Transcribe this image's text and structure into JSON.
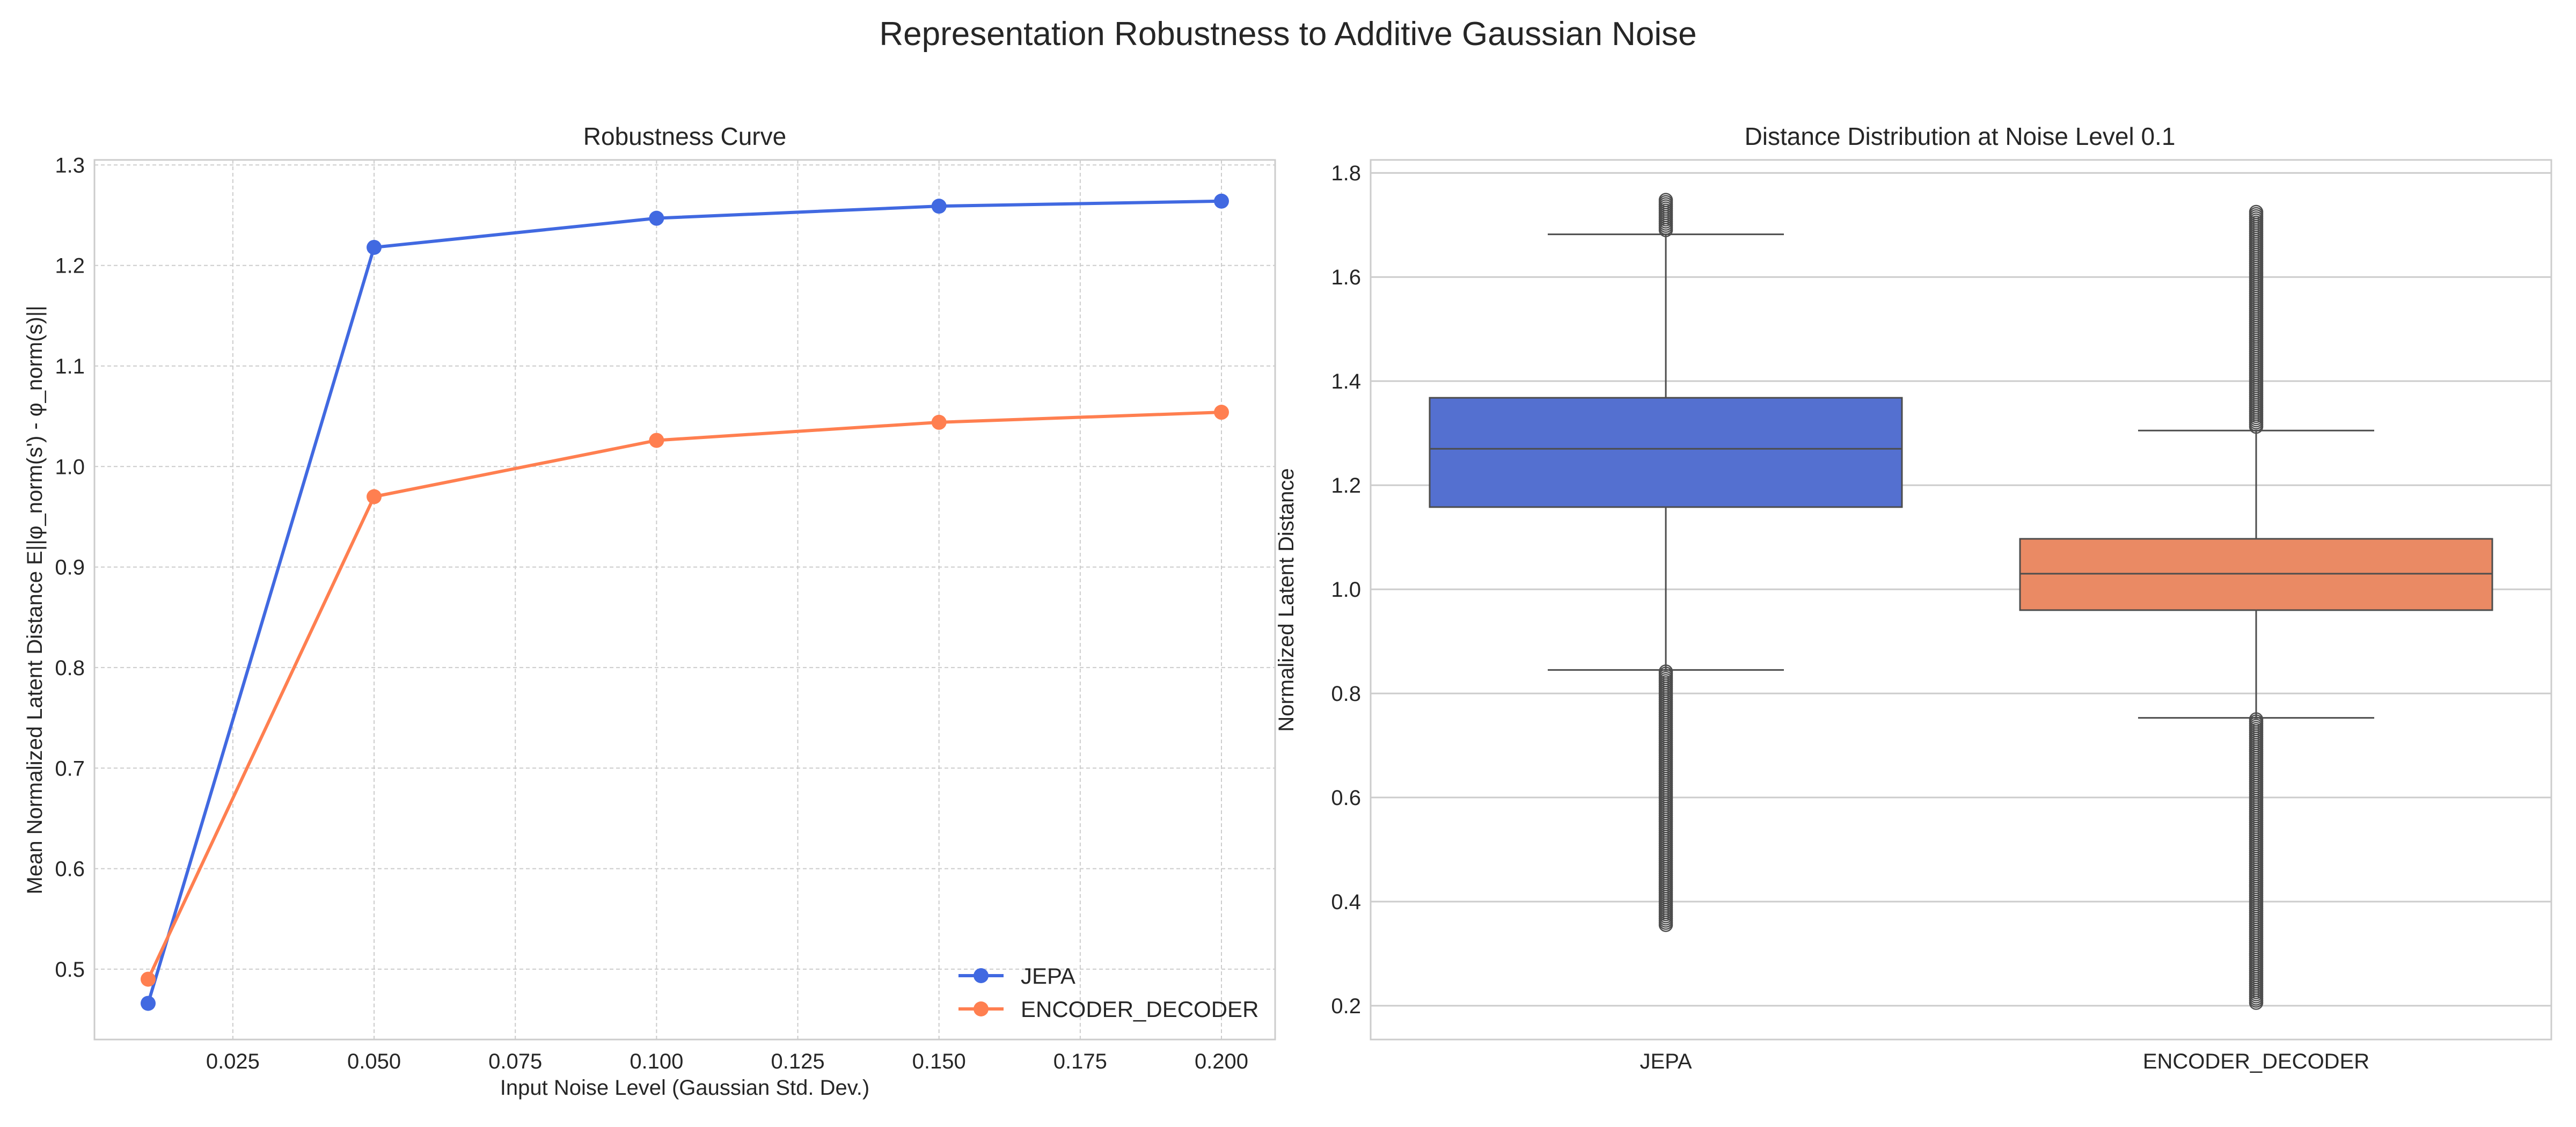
{
  "figure": {
    "title": "Representation Robustness to Additive Gaussian Noise"
  },
  "chart_data": [
    {
      "type": "line",
      "title": "Robustness Curve",
      "xlabel": "Input Noise Level (Gaussian Std. Dev.)",
      "ylabel": "Mean Normalized Latent Distance E||φ_norm(s') - φ_norm(s)||",
      "x": [
        0.01,
        0.05,
        0.1,
        0.15,
        0.2
      ],
      "series": [
        {
          "name": "JEPA",
          "color": "#4169e1",
          "values": [
            0.466,
            1.218,
            1.247,
            1.259,
            1.264
          ]
        },
        {
          "name": "ENCODER_DECODER",
          "color": "#ff7f50",
          "values": [
            0.49,
            0.97,
            1.026,
            1.044,
            1.054
          ]
        }
      ],
      "xlim": [
        0.0005,
        0.2095
      ],
      "ylim": [
        0.43,
        1.305
      ],
      "xticks": [
        0.025,
        0.05,
        0.075,
        0.1,
        0.125,
        0.15,
        0.175,
        0.2
      ],
      "xtick_labels": [
        "0.025",
        "0.050",
        "0.075",
        "0.100",
        "0.125",
        "0.150",
        "0.175",
        "0.200"
      ],
      "yticks": [
        0.5,
        0.6,
        0.7,
        0.8,
        0.9,
        1.0,
        1.1,
        1.2,
        1.3
      ],
      "ytick_labels": [
        "0.5",
        "0.6",
        "0.7",
        "0.8",
        "0.9",
        "1.0",
        "1.1",
        "1.2",
        "1.3"
      ],
      "grid": true,
      "legend": "lower-right"
    },
    {
      "type": "box",
      "title": "Distance Distribution at Noise Level 0.1",
      "xlabel": "",
      "ylabel": "Normalized Latent Distance",
      "categories": [
        "JEPA",
        "ENCODER_DECODER"
      ],
      "boxes": [
        {
          "name": "JEPA",
          "color": "#5470d0",
          "q1": 1.158,
          "median": 1.27,
          "q3": 1.368,
          "whisker_low": 0.845,
          "whisker_high": 1.682,
          "outliers_low_range": [
            0.355,
            0.842
          ],
          "outliers_high_range": [
            1.688,
            1.748
          ]
        },
        {
          "name": "ENCODER_DECODER",
          "color": "#ea8a64",
          "q1": 0.96,
          "median": 1.03,
          "q3": 1.097,
          "whisker_low": 0.753,
          "whisker_high": 1.305,
          "outliers_low_range": [
            0.205,
            0.75
          ],
          "outliers_high_range": [
            1.31,
            1.725
          ]
        }
      ],
      "ylim": [
        0.135,
        1.825
      ],
      "yticks": [
        0.2,
        0.4,
        0.6,
        0.8,
        1.0,
        1.2,
        1.4,
        1.6,
        1.8
      ],
      "ytick_labels": [
        "0.2",
        "0.4",
        "0.6",
        "0.8",
        "1.0",
        "1.2",
        "1.4",
        "1.6",
        "1.8"
      ],
      "grid": true
    }
  ]
}
